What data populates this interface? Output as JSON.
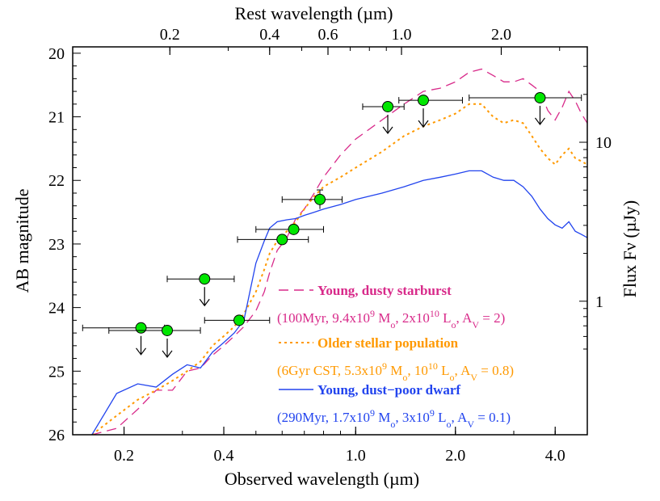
{
  "chart_data": {
    "type": "scatter",
    "title": "",
    "xlabel": "Observed wavelength (µm)",
    "ylabel": "AB magnitude",
    "top_xlabel": "Rest wavelength (µm)",
    "right_ylabel": "Flux Fν (µJy)",
    "x_scale": "log",
    "xlim": [
      0.14,
      5.0
    ],
    "ylim": [
      26.0,
      19.9
    ],
    "x_ticks": [
      {
        "value": 0.2,
        "label": "0.2"
      },
      {
        "value": 0.4,
        "label": "0.4"
      },
      {
        "value": 1.0,
        "label": "1.0"
      },
      {
        "value": 2.0,
        "label": "2.0"
      },
      {
        "value": 4.0,
        "label": "4.0"
      }
    ],
    "top_ticks": [
      {
        "value": 0.2,
        "label": "0.2"
      },
      {
        "value": 0.4,
        "label": "0.4"
      },
      {
        "value": 0.6,
        "label": "0.6"
      },
      {
        "value": 1.0,
        "label": "1.0"
      },
      {
        "value": 2.0,
        "label": "2.0"
      }
    ],
    "top_redshift": 0.375,
    "y_ticks": [
      20,
      21,
      22,
      23,
      24,
      25,
      26
    ],
    "right_ticks": [
      {
        "value": 10,
        "label": "10"
      },
      {
        "value": 1,
        "label": "1"
      }
    ],
    "colors": {
      "points": "#00e600",
      "starburst": "#d82a8a",
      "older": "#ff9900",
      "dwarf": "#2244ee",
      "errorbar": "#000000"
    },
    "points": [
      {
        "x": 0.225,
        "y": 24.32,
        "x_lo": 0.15,
        "x_hi": 0.265,
        "y_err": 0.0,
        "upper_limit": true
      },
      {
        "x": 0.27,
        "y": 24.36,
        "x_lo": 0.18,
        "x_hi": 0.34,
        "y_err": 0.0,
        "upper_limit": true
      },
      {
        "x": 0.35,
        "y": 23.55,
        "x_lo": 0.27,
        "x_hi": 0.43,
        "y_err": 0.0,
        "upper_limit": true
      },
      {
        "x": 0.445,
        "y": 24.2,
        "x_lo": 0.35,
        "x_hi": 0.55,
        "y_err": 0.05,
        "upper_limit": false
      },
      {
        "x": 0.6,
        "y": 22.93,
        "x_lo": 0.44,
        "x_hi": 0.72,
        "y_err": 0.05,
        "upper_limit": false
      },
      {
        "x": 0.65,
        "y": 22.77,
        "x_lo": 0.5,
        "x_hi": 0.8,
        "y_err": 0.07,
        "upper_limit": false
      },
      {
        "x": 0.78,
        "y": 22.3,
        "x_lo": 0.6,
        "x_hi": 0.91,
        "y_err": 0.15,
        "upper_limit": false
      },
      {
        "x": 1.25,
        "y": 20.84,
        "x_lo": 1.05,
        "x_hi": 1.4,
        "y_err": 0.0,
        "upper_limit": true
      },
      {
        "x": 1.6,
        "y": 20.74,
        "x_lo": 1.35,
        "x_hi": 2.1,
        "y_err": 0.0,
        "upper_limit": true
      },
      {
        "x": 3.6,
        "y": 20.7,
        "x_lo": 2.2,
        "x_hi": 4.8,
        "y_err": 0.0,
        "upper_limit": true
      }
    ],
    "series": [
      {
        "name": "Young, dusty starburst",
        "style": "dashed",
        "x": [
          0.16,
          0.19,
          0.22,
          0.25,
          0.28,
          0.31,
          0.34,
          0.37,
          0.4,
          0.43,
          0.46,
          0.5,
          0.53,
          0.55,
          0.58,
          0.62,
          0.66,
          0.7,
          0.75,
          0.8,
          0.9,
          1.0,
          1.2,
          1.4,
          1.6,
          1.8,
          2.0,
          2.2,
          2.4,
          2.6,
          2.8,
          3.0,
          3.2,
          3.4,
          3.6,
          3.8,
          4.0,
          4.2,
          4.4,
          4.6,
          4.8,
          5.0
        ],
        "y": [
          26.0,
          25.9,
          25.6,
          25.3,
          25.3,
          25.0,
          24.95,
          24.75,
          24.6,
          24.45,
          24.3,
          24.05,
          23.75,
          23.45,
          23.1,
          22.9,
          22.6,
          22.45,
          22.2,
          21.95,
          21.6,
          21.35,
          21.05,
          20.8,
          20.6,
          20.55,
          20.45,
          20.3,
          20.25,
          20.35,
          20.45,
          20.45,
          20.4,
          20.5,
          20.6,
          20.9,
          21.05,
          20.85,
          20.6,
          20.75,
          20.95,
          21.1
        ]
      },
      {
        "name": "Older stellar population",
        "style": "dotted",
        "x": [
          0.16,
          0.19,
          0.22,
          0.25,
          0.28,
          0.31,
          0.34,
          0.37,
          0.4,
          0.43,
          0.46,
          0.5,
          0.53,
          0.55,
          0.58,
          0.62,
          0.66,
          0.7,
          0.75,
          0.8,
          0.9,
          1.0,
          1.2,
          1.4,
          1.6,
          1.8,
          2.0,
          2.2,
          2.4,
          2.6,
          2.8,
          3.0,
          3.2,
          3.4,
          3.6,
          3.8,
          4.0,
          4.2,
          4.4,
          4.6,
          4.8,
          5.0
        ],
        "y": [
          26.0,
          25.7,
          25.45,
          25.3,
          25.15,
          25.0,
          24.85,
          24.6,
          24.45,
          24.3,
          24.1,
          23.75,
          23.4,
          23.15,
          22.95,
          22.8,
          22.65,
          22.45,
          22.25,
          22.1,
          21.95,
          21.8,
          21.55,
          21.3,
          21.15,
          21.05,
          20.95,
          20.8,
          20.8,
          21.0,
          21.1,
          21.05,
          21.1,
          21.3,
          21.5,
          21.65,
          21.75,
          21.6,
          21.5,
          21.65,
          21.7,
          21.75
        ]
      },
      {
        "name": "Young, dust-poor dwarf",
        "style": "solid",
        "x": [
          0.16,
          0.19,
          0.22,
          0.25,
          0.28,
          0.31,
          0.34,
          0.37,
          0.4,
          0.43,
          0.46,
          0.5,
          0.53,
          0.55,
          0.58,
          0.62,
          0.66,
          0.7,
          0.75,
          0.8,
          0.9,
          1.0,
          1.2,
          1.4,
          1.6,
          1.8,
          2.0,
          2.2,
          2.4,
          2.6,
          2.8,
          3.0,
          3.2,
          3.4,
          3.6,
          3.8,
          4.0,
          4.2,
          4.4,
          4.6,
          4.8,
          5.0
        ],
        "y": [
          26.0,
          25.35,
          25.2,
          25.25,
          25.05,
          24.9,
          24.95,
          24.7,
          24.55,
          24.4,
          24.2,
          23.3,
          22.95,
          22.75,
          22.65,
          22.62,
          22.6,
          22.55,
          22.5,
          22.45,
          22.38,
          22.3,
          22.2,
          22.1,
          22.0,
          21.95,
          21.9,
          21.85,
          21.85,
          21.95,
          22.0,
          22.0,
          22.1,
          22.25,
          22.45,
          22.6,
          22.7,
          22.75,
          22.65,
          22.8,
          22.85,
          22.9
        ]
      }
    ],
    "legend": [
      {
        "title": "Young, dusty starburst",
        "detail": "(100Myr, 9.4x10^9 M_o, 2x10^10 L_o, A_V = 2)",
        "color": "#d82a8a",
        "style": "dashed"
      },
      {
        "title": "Older stellar population",
        "detail": "(6Gyr CST, 5.3x10^9 M_o, 10^10 L_o, A_V = 0.8)",
        "color": "#ff9900",
        "style": "dotted"
      },
      {
        "title": "Young, dust−poor dwarf",
        "detail": "(290Myr, 1.7x10^9 M_o, 3x10^9 L_o, A_V = 0.1)",
        "color": "#2244ee",
        "style": "solid"
      }
    ]
  }
}
